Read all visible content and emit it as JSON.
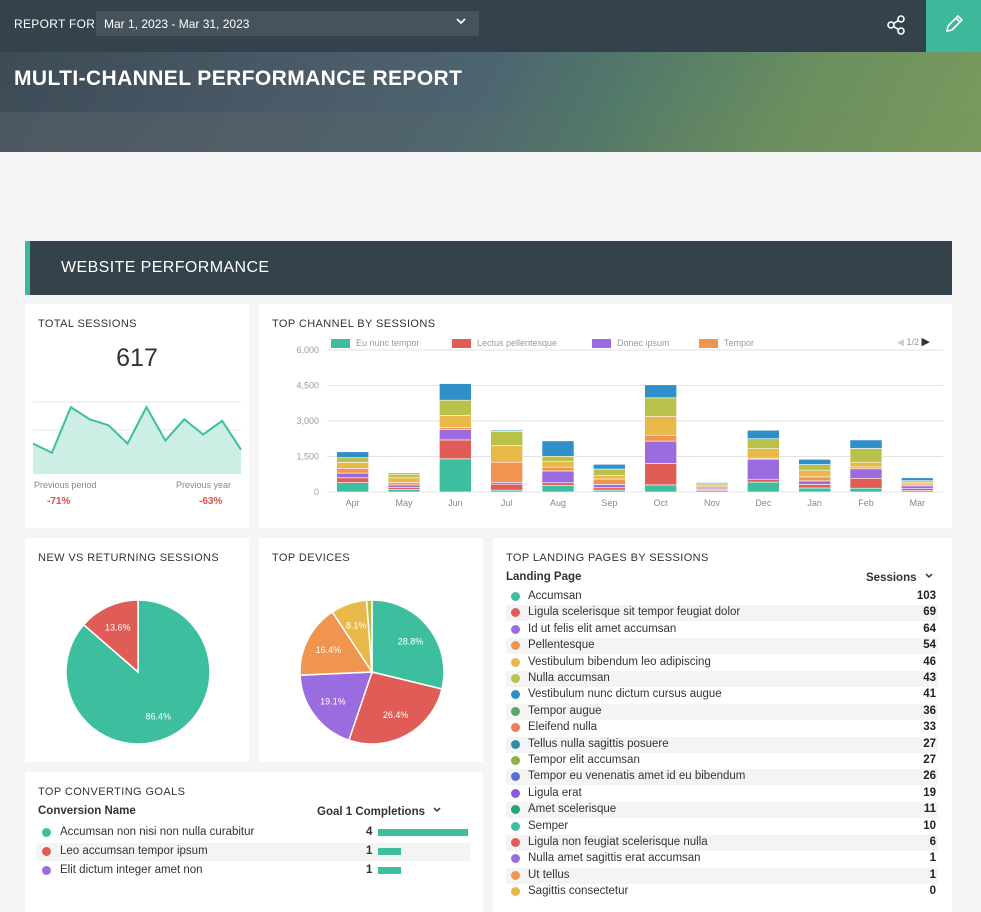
{
  "header": {
    "report_for_label": "REPORT FOR",
    "date_range": "Mar 1, 2023 - Mar 31, 2023",
    "title": "MULTI-CHANNEL PERFORMANCE REPORT"
  },
  "section": {
    "title": "WEBSITE PERFORMANCE"
  },
  "colors": {
    "accent": "#3db89b",
    "dark": "#34424c",
    "negative": "#d9534f"
  },
  "total_sessions": {
    "title": "TOTAL SESSIONS",
    "value": "617",
    "previous_period_label": "Previous period",
    "previous_period_delta": "-71%",
    "previous_year_label": "Previous year",
    "previous_year_delta": "-63%",
    "sparkline": [
      350,
      320,
      470,
      430,
      410,
      350,
      470,
      360,
      430,
      380,
      425,
      330
    ]
  },
  "chart_data": [
    {
      "type": "bar",
      "title": "TOP CHANNEL BY SESSIONS",
      "stacked": true,
      "legend_page": "1/2",
      "categories": [
        "Apr",
        "May",
        "Jun",
        "Jul",
        "Aug",
        "Sep",
        "Oct",
        "Nov",
        "Dec",
        "Jan",
        "Feb",
        "Mar"
      ],
      "ylim": [
        0,
        6000
      ],
      "yticks": [
        "6,000",
        "4,500",
        "3,000",
        "1,500",
        "0"
      ],
      "series": [
        {
          "name": "Eu nunc tempor",
          "color": "#3dbf9f",
          "values": [
            400,
            100,
            1400,
            80,
            270,
            80,
            300,
            60,
            420,
            170,
            160,
            60
          ]
        },
        {
          "name": "Lectus pellentesque",
          "color": "#e05c57",
          "values": [
            200,
            100,
            800,
            250,
            120,
            100,
            900,
            40,
            120,
            150,
            420,
            80
          ]
        },
        {
          "name": "Donec ipsum",
          "color": "#9b6be0",
          "values": [
            200,
            100,
            450,
            80,
            500,
            140,
            950,
            60,
            850,
            150,
            400,
            120
          ]
        },
        {
          "name": "Tempor",
          "color": "#f0954f",
          "values": [
            200,
            100,
            80,
            850,
            160,
            230,
            250,
            60,
            40,
            170,
            80,
            80
          ]
        },
        {
          "name": "",
          "color": "#e8b84b",
          "values": [
            250,
            200,
            500,
            700,
            250,
            140,
            800,
            80,
            400,
            280,
            200,
            80
          ]
        },
        {
          "name": "",
          "color": "#b8c24a",
          "values": [
            200,
            150,
            650,
            600,
            210,
            280,
            780,
            50,
            420,
            240,
            580,
            60
          ]
        },
        {
          "name": "",
          "color": "#2f8fc9",
          "values": [
            250,
            50,
            700,
            50,
            650,
            200,
            550,
            50,
            360,
            220,
            360,
            120
          ]
        }
      ]
    },
    {
      "type": "pie",
      "title": "NEW VS RETURNING SESSIONS",
      "slices": [
        {
          "label": "86.4%",
          "value": 86.4,
          "color": "#3dbf9f"
        },
        {
          "label": "13.6%",
          "value": 13.6,
          "color": "#e05c57"
        }
      ]
    },
    {
      "type": "pie",
      "title": "TOP DEVICES",
      "slices": [
        {
          "label": "28.8%",
          "value": 28.8,
          "color": "#3dbf9f"
        },
        {
          "label": "26.4%",
          "value": 26.4,
          "color": "#e05c57"
        },
        {
          "label": "19.1%",
          "value": 19.1,
          "color": "#9b6be0"
        },
        {
          "label": "16.4%",
          "value": 16.4,
          "color": "#f0954f"
        },
        {
          "label": "8.1%",
          "value": 8.1,
          "color": "#e8b84b"
        },
        {
          "label": "",
          "value": 1.2,
          "color": "#b8c24a"
        }
      ]
    }
  ],
  "landing_pages": {
    "title": "TOP LANDING PAGES BY SESSIONS",
    "col_page": "Landing Page",
    "col_sessions": "Sessions",
    "rows": [
      {
        "name": "Accumsan",
        "value": "103",
        "color": "#3dbf9f"
      },
      {
        "name": "Ligula scelerisque sit tempor feugiat dolor",
        "value": "69",
        "color": "#e05c57"
      },
      {
        "name": "Id ut felis elit amet accumsan",
        "value": "64",
        "color": "#9b6be0"
      },
      {
        "name": "Pellentesque",
        "value": "54",
        "color": "#f0954f"
      },
      {
        "name": "Vestibulum bibendum leo adipiscing",
        "value": "46",
        "color": "#e8b84b"
      },
      {
        "name": "Nulla accumsan",
        "value": "43",
        "color": "#b8c24a"
      },
      {
        "name": "Vestibulum nunc dictum cursus augue",
        "value": "41",
        "color": "#2f8fc9"
      },
      {
        "name": "Tempor augue",
        "value": "36",
        "color": "#5aa36b"
      },
      {
        "name": "Eleifend nulla",
        "value": "33",
        "color": "#f07a5a"
      },
      {
        "name": "Tellus nulla sagittis posuere",
        "value": "27",
        "color": "#2e8fa3"
      },
      {
        "name": "Tempor elit accumsan",
        "value": "27",
        "color": "#8fb04a"
      },
      {
        "name": "Tempor eu venenatis amet id eu bibendum",
        "value": "26",
        "color": "#5a6fd6"
      },
      {
        "name": "Ligula erat",
        "value": "19",
        "color": "#8a5ad6"
      },
      {
        "name": "Amet scelerisque",
        "value": "11",
        "color": "#2aa07e"
      },
      {
        "name": "Semper",
        "value": "10",
        "color": "#3dbf9f"
      },
      {
        "name": "Ligula non feugiat scelerisque nulla",
        "value": "6",
        "color": "#e05c57"
      },
      {
        "name": "Nulla amet sagittis erat accumsan",
        "value": "1",
        "color": "#9b6be0"
      },
      {
        "name": "Ut tellus",
        "value": "1",
        "color": "#f0954f"
      },
      {
        "name": "Sagittis consectetur",
        "value": "0",
        "color": "#e8b84b"
      }
    ]
  },
  "goals": {
    "title": "TOP CONVERTING GOALS",
    "col_name": "Conversion Name",
    "col_value": "Goal 1 Completions",
    "rows": [
      {
        "name": "Accumsan non nisi non nulla curabitur",
        "value": "4",
        "fraction": 1.0,
        "color": "#3dbf9f"
      },
      {
        "name": "Leo accumsan tempor ipsum",
        "value": "1",
        "fraction": 0.25,
        "color": "#e05c57"
      },
      {
        "name": "Elit dictum integer amet non",
        "value": "1",
        "fraction": 0.25,
        "color": "#9b6be0"
      }
    ]
  }
}
